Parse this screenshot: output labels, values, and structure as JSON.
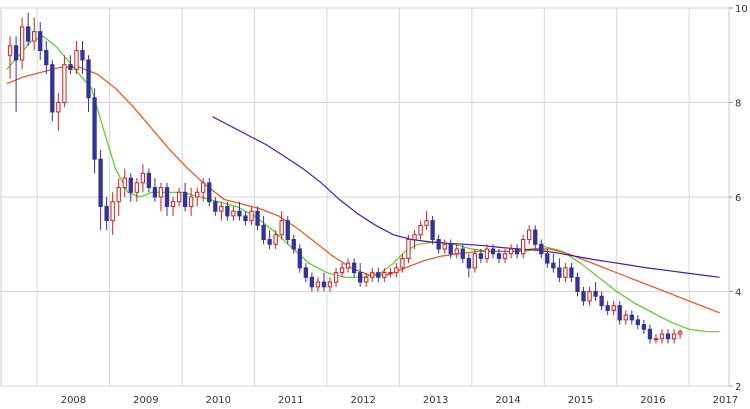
{
  "chart_data": {
    "type": "candlestick",
    "period": "monthly",
    "x_ticks": [
      "2008",
      "2009",
      "2010",
      "2011",
      "2012",
      "2013",
      "2014",
      "2015",
      "2016",
      "2017"
    ],
    "y_ticks": [
      10,
      8,
      6,
      4,
      2
    ],
    "ylim": [
      2,
      10
    ],
    "grid": true,
    "colors": {
      "up": "#cc2222",
      "down": "#333399",
      "ma_short": "#55cc22",
      "ma_mid": "#e0561a",
      "ma_long": "#4a1aa8",
      "grid": "#d6d6d6"
    },
    "series": [
      {
        "start": "2007-08",
        "ohlc": [
          [
            9.0,
            9.4,
            8.5,
            9.2
          ],
          [
            9.2,
            9.4,
            7.8,
            8.9
          ],
          [
            8.9,
            9.8,
            8.7,
            9.6
          ],
          [
            9.6,
            9.9,
            9.2,
            9.3
          ],
          [
            9.3,
            9.8,
            9.1,
            9.5
          ],
          [
            9.5,
            9.7,
            8.9,
            9.1
          ],
          [
            9.1,
            9.3,
            8.6,
            8.8
          ],
          [
            8.8,
            8.9,
            7.6,
            7.8
          ],
          [
            7.8,
            8.2,
            7.4,
            8.0
          ],
          [
            8.0,
            9.0,
            7.9,
            8.8
          ],
          [
            8.8,
            9.0,
            8.6,
            8.7
          ],
          [
            8.7,
            9.3,
            8.6,
            9.1
          ],
          [
            9.1,
            9.3,
            8.6,
            8.9
          ],
          [
            8.9,
            9.0,
            7.8,
            8.1
          ],
          [
            8.1,
            8.3,
            6.5,
            6.8
          ],
          [
            6.8,
            7.0,
            5.3,
            5.8
          ],
          [
            5.8,
            6.0,
            5.3,
            5.5
          ],
          [
            5.5,
            6.1,
            5.2,
            5.9
          ],
          [
            5.9,
            6.4,
            5.6,
            6.2
          ],
          [
            6.2,
            6.6,
            6.0,
            6.4
          ],
          [
            6.4,
            6.5,
            5.9,
            6.1
          ],
          [
            6.1,
            6.4,
            5.9,
            6.3
          ],
          [
            6.3,
            6.7,
            6.1,
            6.5
          ],
          [
            6.5,
            6.6,
            6.1,
            6.2
          ],
          [
            6.2,
            6.4,
            5.9,
            6.0
          ],
          [
            6.0,
            6.3,
            5.7,
            6.2
          ],
          [
            6.2,
            6.3,
            5.6,
            5.8
          ],
          [
            5.8,
            6.0,
            5.6,
            5.9
          ],
          [
            5.9,
            6.2,
            5.8,
            6.1
          ],
          [
            6.1,
            6.3,
            5.7,
            5.8
          ],
          [
            5.8,
            6.2,
            5.6,
            6.0
          ],
          [
            6.0,
            6.2,
            5.8,
            6.1
          ],
          [
            6.1,
            6.4,
            5.9,
            6.3
          ],
          [
            6.3,
            6.4,
            5.8,
            5.9
          ],
          [
            5.9,
            6.0,
            5.6,
            5.7
          ],
          [
            5.7,
            5.9,
            5.5,
            5.8
          ],
          [
            5.8,
            5.9,
            5.5,
            5.6
          ],
          [
            5.6,
            5.8,
            5.5,
            5.7
          ],
          [
            5.7,
            5.9,
            5.5,
            5.6
          ],
          [
            5.6,
            5.7,
            5.4,
            5.5
          ],
          [
            5.5,
            5.8,
            5.4,
            5.7
          ],
          [
            5.7,
            5.8,
            5.3,
            5.4
          ],
          [
            5.4,
            5.6,
            5.0,
            5.1
          ],
          [
            5.1,
            5.3,
            4.9,
            5.0
          ],
          [
            5.0,
            5.3,
            4.9,
            5.2
          ],
          [
            5.2,
            5.7,
            5.1,
            5.5
          ],
          [
            5.5,
            5.6,
            5.0,
            5.1
          ],
          [
            5.1,
            5.2,
            4.8,
            4.9
          ],
          [
            4.9,
            5.0,
            4.4,
            4.5
          ],
          [
            4.5,
            4.6,
            4.2,
            4.3
          ],
          [
            4.3,
            4.4,
            4.0,
            4.1
          ],
          [
            4.1,
            4.3,
            4.0,
            4.2
          ],
          [
            4.2,
            4.4,
            4.0,
            4.1
          ],
          [
            4.1,
            4.3,
            4.0,
            4.2
          ],
          [
            4.2,
            4.5,
            4.1,
            4.4
          ],
          [
            4.4,
            4.6,
            4.3,
            4.5
          ],
          [
            4.5,
            4.7,
            4.4,
            4.6
          ],
          [
            4.6,
            4.7,
            4.3,
            4.4
          ],
          [
            4.4,
            4.6,
            4.1,
            4.2
          ],
          [
            4.2,
            4.4,
            4.1,
            4.3
          ],
          [
            4.3,
            4.5,
            4.2,
            4.4
          ],
          [
            4.4,
            4.5,
            4.2,
            4.3
          ],
          [
            4.3,
            4.5,
            4.2,
            4.4
          ],
          [
            4.4,
            4.5,
            4.3,
            4.4
          ],
          [
            4.4,
            4.6,
            4.3,
            4.5
          ],
          [
            4.5,
            4.8,
            4.4,
            4.7
          ],
          [
            4.7,
            5.2,
            4.6,
            5.1
          ],
          [
            5.1,
            5.3,
            4.9,
            5.2
          ],
          [
            5.2,
            5.5,
            5.1,
            5.4
          ],
          [
            5.4,
            5.7,
            5.3,
            5.5
          ],
          [
            5.5,
            5.6,
            5.0,
            5.1
          ],
          [
            5.1,
            5.2,
            4.8,
            4.9
          ],
          [
            4.9,
            5.1,
            4.8,
            5.0
          ],
          [
            5.0,
            5.1,
            4.7,
            4.8
          ],
          [
            4.8,
            5.0,
            4.7,
            4.9
          ],
          [
            4.9,
            5.0,
            4.6,
            4.7
          ],
          [
            4.7,
            4.8,
            4.3,
            4.5
          ],
          [
            4.5,
            4.9,
            4.4,
            4.8
          ],
          [
            4.8,
            4.9,
            4.6,
            4.7
          ],
          [
            4.7,
            5.0,
            4.6,
            4.9
          ],
          [
            4.9,
            5.0,
            4.7,
            4.8
          ],
          [
            4.8,
            4.9,
            4.6,
            4.7
          ],
          [
            4.7,
            4.9,
            4.6,
            4.8
          ],
          [
            4.8,
            5.0,
            4.7,
            4.9
          ],
          [
            4.9,
            5.0,
            4.7,
            4.8
          ],
          [
            4.8,
            5.2,
            4.7,
            5.1
          ],
          [
            5.1,
            5.4,
            5.0,
            5.3
          ],
          [
            5.3,
            5.4,
            4.9,
            5.0
          ],
          [
            5.0,
            5.1,
            4.7,
            4.8
          ],
          [
            4.8,
            4.9,
            4.5,
            4.6
          ],
          [
            4.6,
            4.8,
            4.4,
            4.5
          ],
          [
            4.5,
            4.7,
            4.2,
            4.3
          ],
          [
            4.3,
            4.6,
            4.2,
            4.5
          ],
          [
            4.5,
            4.6,
            4.2,
            4.3
          ],
          [
            4.3,
            4.4,
            3.9,
            4.0
          ],
          [
            4.0,
            4.1,
            3.7,
            3.8
          ],
          [
            3.8,
            4.1,
            3.7,
            4.0
          ],
          [
            4.0,
            4.2,
            3.8,
            3.9
          ],
          [
            3.9,
            4.0,
            3.6,
            3.7
          ],
          [
            3.7,
            3.8,
            3.5,
            3.6
          ],
          [
            3.6,
            3.8,
            3.5,
            3.7
          ],
          [
            3.7,
            3.8,
            3.3,
            3.4
          ],
          [
            3.4,
            3.6,
            3.3,
            3.5
          ],
          [
            3.5,
            3.6,
            3.3,
            3.4
          ],
          [
            3.4,
            3.5,
            3.2,
            3.3
          ],
          [
            3.3,
            3.4,
            3.1,
            3.2
          ],
          [
            3.2,
            3.3,
            2.9,
            3.0
          ],
          [
            3.0,
            3.1,
            2.9,
            3.0
          ],
          [
            3.0,
            3.2,
            2.9,
            3.1
          ],
          [
            3.1,
            3.2,
            2.9,
            3.0
          ],
          [
            3.0,
            3.2,
            2.9,
            3.1
          ],
          [
            3.1,
            3.2,
            3.0,
            3.15
          ]
        ]
      },
      {
        "name_hint": "short moving average",
        "values": [
          [
            2007.58,
            8.7
          ],
          [
            2007.75,
            9.0
          ],
          [
            2007.92,
            9.3
          ],
          [
            2008.08,
            9.4
          ],
          [
            2008.25,
            9.2
          ],
          [
            2008.42,
            8.9
          ],
          [
            2008.58,
            8.6
          ],
          [
            2008.75,
            8.3
          ],
          [
            2008.92,
            7.4
          ],
          [
            2009.08,
            6.6
          ],
          [
            2009.25,
            6.1
          ],
          [
            2009.42,
            6.0
          ],
          [
            2009.58,
            6.1
          ],
          [
            2009.75,
            6.1
          ],
          [
            2010.0,
            6.1
          ],
          [
            2010.25,
            6.0
          ],
          [
            2010.5,
            5.9
          ],
          [
            2010.75,
            5.8
          ],
          [
            2011.0,
            5.6
          ],
          [
            2011.25,
            5.3
          ],
          [
            2011.5,
            4.95
          ],
          [
            2011.75,
            4.6
          ],
          [
            2012.0,
            4.4
          ],
          [
            2012.25,
            4.3
          ],
          [
            2012.5,
            4.3
          ],
          [
            2012.75,
            4.4
          ],
          [
            2012.92,
            4.6
          ],
          [
            2013.08,
            4.85
          ],
          [
            2013.25,
            5.0
          ],
          [
            2013.5,
            5.05
          ],
          [
            2013.75,
            5.0
          ],
          [
            2014.0,
            4.9
          ],
          [
            2014.25,
            4.85
          ],
          [
            2014.5,
            4.85
          ],
          [
            2014.75,
            4.85
          ],
          [
            2015.0,
            4.95
          ],
          [
            2015.25,
            4.85
          ],
          [
            2015.5,
            4.6
          ],
          [
            2015.75,
            4.3
          ],
          [
            2016.0,
            4.0
          ],
          [
            2016.25,
            3.75
          ],
          [
            2016.5,
            3.55
          ],
          [
            2016.75,
            3.35
          ],
          [
            2017.0,
            3.2
          ],
          [
            2017.25,
            3.15
          ],
          [
            2017.42,
            3.15
          ]
        ]
      },
      {
        "name_hint": "medium moving average",
        "values": [
          [
            2007.58,
            8.4
          ],
          [
            2007.83,
            8.55
          ],
          [
            2008.08,
            8.65
          ],
          [
            2008.33,
            8.75
          ],
          [
            2008.58,
            8.75
          ],
          [
            2008.83,
            8.6
          ],
          [
            2009.08,
            8.3
          ],
          [
            2009.33,
            7.9
          ],
          [
            2009.58,
            7.45
          ],
          [
            2009.83,
            7.0
          ],
          [
            2010.08,
            6.6
          ],
          [
            2010.33,
            6.25
          ],
          [
            2010.58,
            5.95
          ],
          [
            2010.83,
            5.85
          ],
          [
            2011.08,
            5.75
          ],
          [
            2011.33,
            5.6
          ],
          [
            2011.58,
            5.35
          ],
          [
            2011.83,
            5.05
          ],
          [
            2012.08,
            4.75
          ],
          [
            2012.33,
            4.5
          ],
          [
            2012.58,
            4.35
          ],
          [
            2012.83,
            4.35
          ],
          [
            2013.08,
            4.5
          ],
          [
            2013.33,
            4.65
          ],
          [
            2013.58,
            4.75
          ],
          [
            2013.83,
            4.8
          ],
          [
            2014.08,
            4.85
          ],
          [
            2014.33,
            4.85
          ],
          [
            2014.58,
            4.85
          ],
          [
            2014.83,
            4.9
          ],
          [
            2015.08,
            4.9
          ],
          [
            2015.33,
            4.8
          ],
          [
            2015.58,
            4.65
          ],
          [
            2015.83,
            4.5
          ],
          [
            2016.08,
            4.35
          ],
          [
            2016.33,
            4.2
          ],
          [
            2016.58,
            4.05
          ],
          [
            2016.83,
            3.9
          ],
          [
            2017.08,
            3.75
          ],
          [
            2017.42,
            3.55
          ]
        ]
      },
      {
        "name_hint": "long moving average",
        "values": [
          [
            2010.42,
            7.7
          ],
          [
            2010.67,
            7.5
          ],
          [
            2010.92,
            7.3
          ],
          [
            2011.17,
            7.1
          ],
          [
            2011.42,
            6.85
          ],
          [
            2011.67,
            6.6
          ],
          [
            2011.92,
            6.3
          ],
          [
            2012.17,
            5.95
          ],
          [
            2012.42,
            5.65
          ],
          [
            2012.67,
            5.4
          ],
          [
            2012.92,
            5.2
          ],
          [
            2013.17,
            5.1
          ],
          [
            2013.42,
            5.05
          ],
          [
            2013.67,
            5.02
          ],
          [
            2013.92,
            5.0
          ],
          [
            2014.17,
            4.97
          ],
          [
            2014.42,
            4.93
          ],
          [
            2014.67,
            4.9
          ],
          [
            2014.92,
            4.87
          ],
          [
            2015.17,
            4.82
          ],
          [
            2015.42,
            4.75
          ],
          [
            2015.67,
            4.68
          ],
          [
            2015.92,
            4.62
          ],
          [
            2016.17,
            4.56
          ],
          [
            2016.42,
            4.5
          ],
          [
            2016.67,
            4.45
          ],
          [
            2016.92,
            4.4
          ],
          [
            2017.17,
            4.35
          ],
          [
            2017.42,
            4.3
          ]
        ]
      }
    ]
  }
}
